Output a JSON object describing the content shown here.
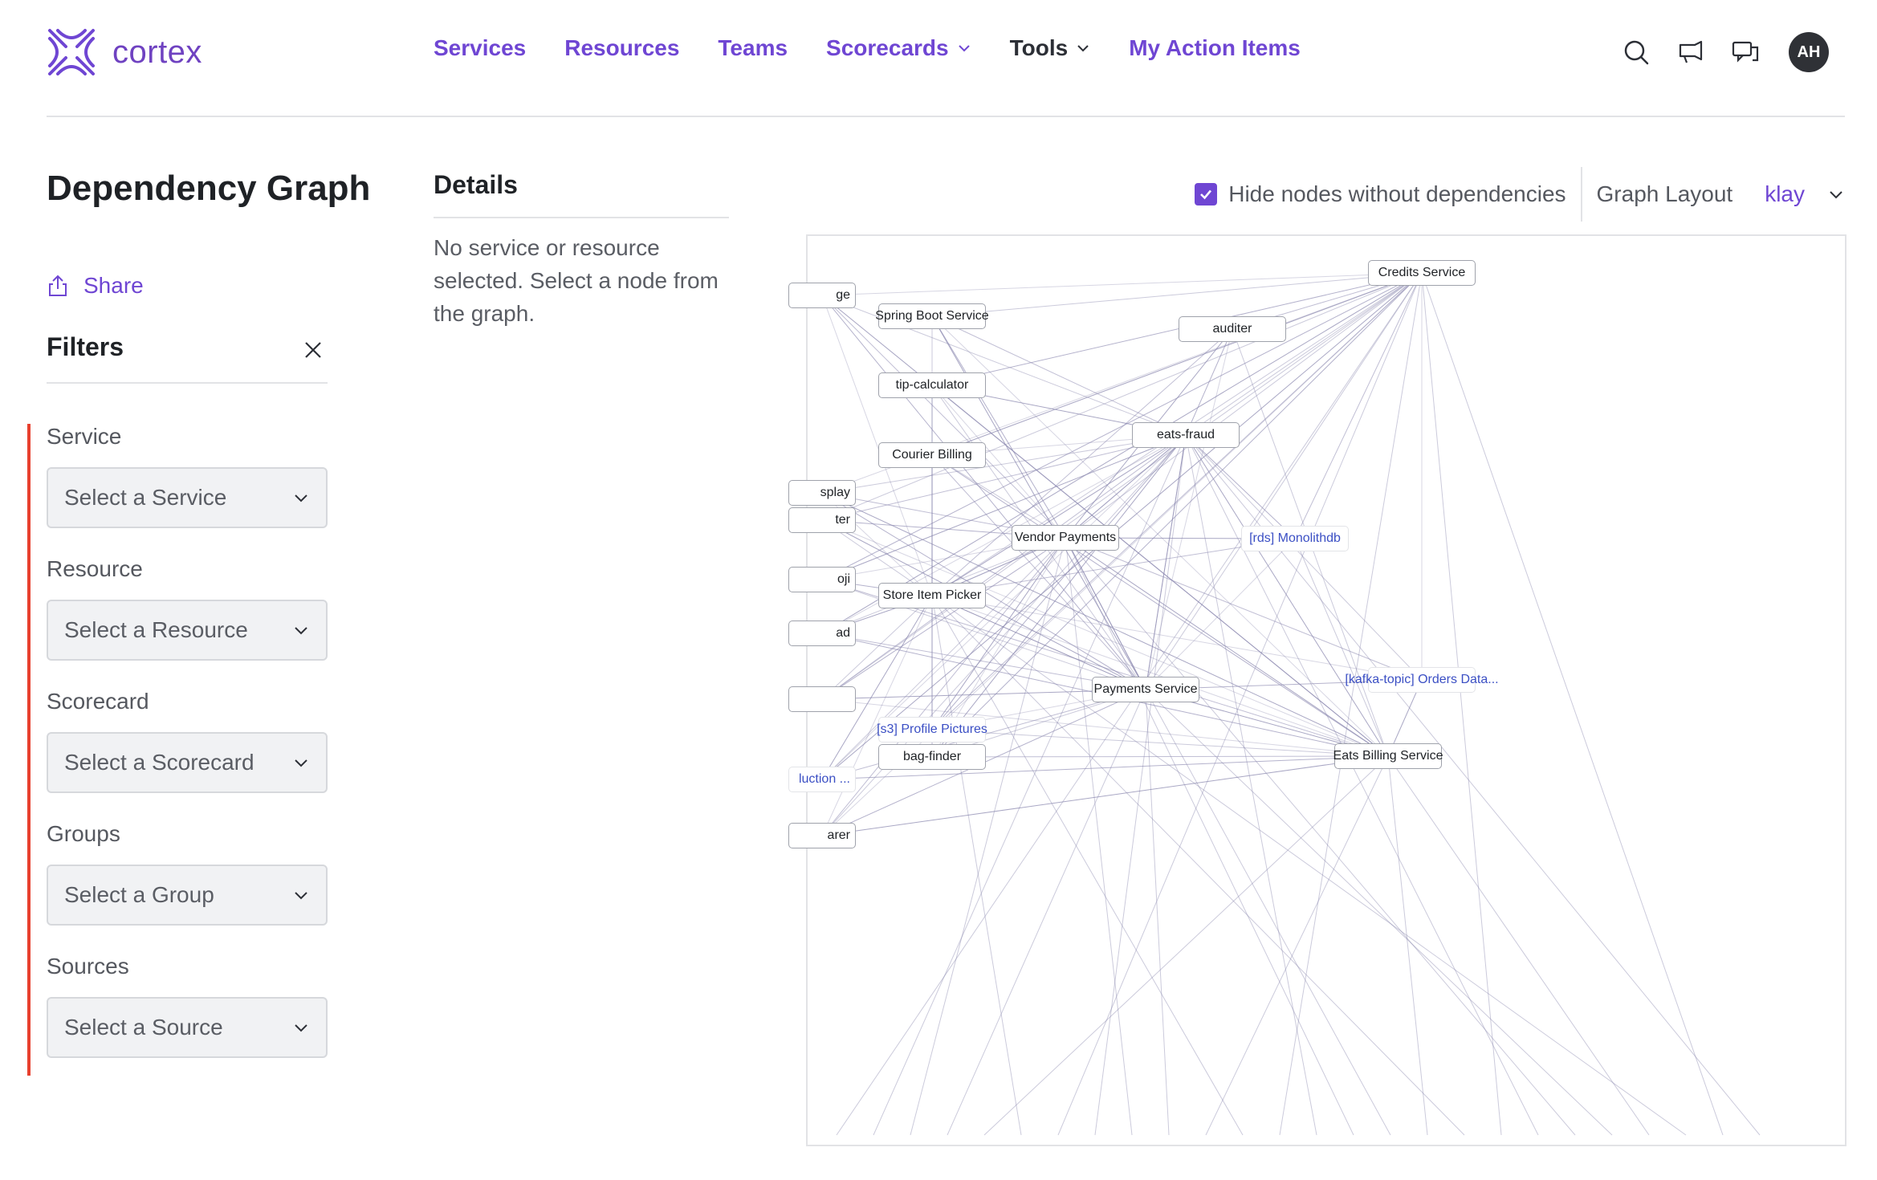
{
  "brand": {
    "name": "cortex",
    "color": "#6f46d3"
  },
  "nav": {
    "items": [
      {
        "label": "Services",
        "dropdown": false
      },
      {
        "label": "Resources",
        "dropdown": false
      },
      {
        "label": "Teams",
        "dropdown": false
      },
      {
        "label": "Scorecards",
        "dropdown": true
      },
      {
        "label": "Tools",
        "dropdown": true
      },
      {
        "label": "My Action Items",
        "dropdown": false
      }
    ],
    "icons": [
      "search-icon",
      "announcement-icon",
      "chat-icon"
    ],
    "avatar_initials": "AH"
  },
  "page": {
    "title": "Dependency Graph",
    "share_label": "Share"
  },
  "filters": {
    "title": "Filters",
    "groups": [
      {
        "label": "Service",
        "placeholder": "Select a Service"
      },
      {
        "label": "Resource",
        "placeholder": "Select a Resource"
      },
      {
        "label": "Scorecard",
        "placeholder": "Select a Scorecard"
      },
      {
        "label": "Groups",
        "placeholder": "Select a Group"
      },
      {
        "label": "Sources",
        "placeholder": "Select a Source"
      }
    ]
  },
  "details": {
    "title": "Details",
    "empty_text": "No service or resource selected. Select a node from the graph."
  },
  "graph_controls": {
    "hide_nodes_label": "Hide nodes without dependencies",
    "hide_nodes_checked": true,
    "layout_label": "Graph Layout",
    "layout_value": "klay"
  },
  "graph": {
    "nodes": [
      {
        "label": "ge",
        "kind": "service"
      },
      {
        "label": "Spring Boot Service",
        "kind": "service"
      },
      {
        "label": "Credits Service",
        "kind": "service"
      },
      {
        "label": "auditer",
        "kind": "service"
      },
      {
        "label": "tip-calculator",
        "kind": "service"
      },
      {
        "label": "eats-fraud",
        "kind": "service"
      },
      {
        "label": "Courier Billing",
        "kind": "service"
      },
      {
        "label": "splay",
        "kind": "service"
      },
      {
        "label": "ter",
        "kind": "service"
      },
      {
        "label": "Vendor Payments",
        "kind": "service"
      },
      {
        "label": "[rds] Monolithdb",
        "kind": "resource"
      },
      {
        "label": "oji",
        "kind": "service"
      },
      {
        "label": "Store Item Picker",
        "kind": "service"
      },
      {
        "label": "ad",
        "kind": "service"
      },
      {
        "label": "Payments Service",
        "kind": "service"
      },
      {
        "label": "[kafka-topic] Orders Data...",
        "kind": "resource"
      },
      {
        "label": "",
        "kind": "service"
      },
      {
        "label": "[s3] Profile Pictures",
        "kind": "resource"
      },
      {
        "label": "bag-finder",
        "kind": "service"
      },
      {
        "label": "Eats Billing Service",
        "kind": "service"
      },
      {
        "label": "luction ...",
        "kind": "resource"
      },
      {
        "label": "arer",
        "kind": "service"
      }
    ]
  }
}
